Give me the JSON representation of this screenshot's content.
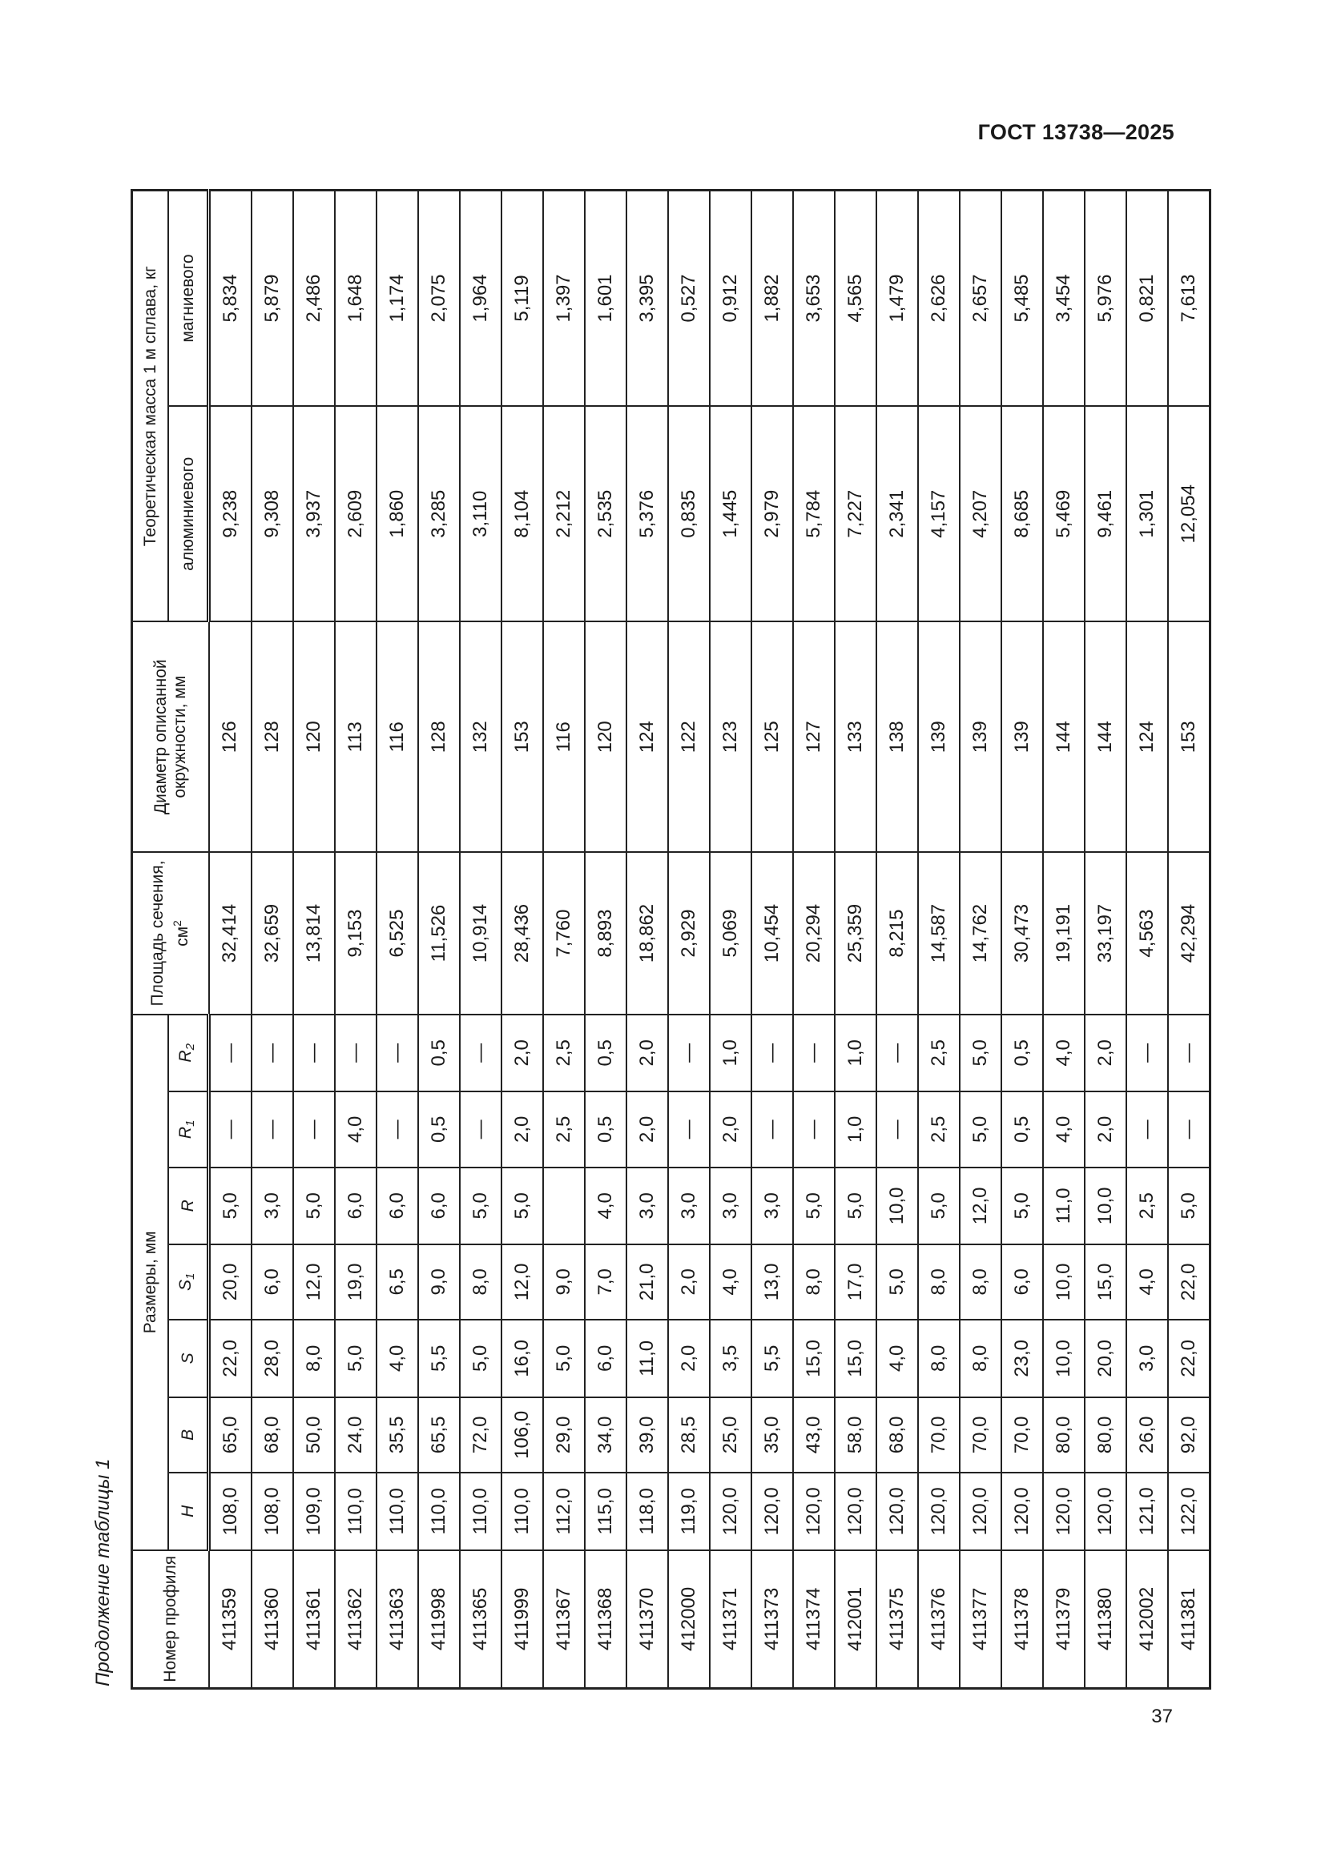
{
  "header": {
    "doc_code": "ГОСТ 13738—2025"
  },
  "caption": "Продолжение таблицы 1",
  "page_number": "37",
  "table": {
    "headers": {
      "profile_no": "Номер профиля",
      "dimensions": "Размеры, мм",
      "H": "H",
      "B": "B",
      "S": "S",
      "S1": {
        "base": "S",
        "sub": "1"
      },
      "R": "R",
      "R1": {
        "base": "R",
        "sub": "1"
      },
      "R2": {
        "base": "R",
        "sub": "2"
      },
      "area": {
        "text": "Площадь сечения, см",
        "sup": "2"
      },
      "diameter": "Диаметр описанной окружности, мм",
      "mass": "Теоретическая масса 1 м сплава, кг",
      "mass_al": "алюминиевого",
      "mass_mg": "магниевого"
    },
    "rows": [
      [
        "411359",
        "108,0",
        "65,0",
        "22,0",
        "20,0",
        "5,0",
        "—",
        "—",
        "32,414",
        "126",
        "9,238",
        "5,834"
      ],
      [
        "411360",
        "108,0",
        "68,0",
        "28,0",
        "6,0",
        "3,0",
        "—",
        "—",
        "32,659",
        "128",
        "9,308",
        "5,879"
      ],
      [
        "411361",
        "109,0",
        "50,0",
        "8,0",
        "12,0",
        "5,0",
        "—",
        "—",
        "13,814",
        "120",
        "3,937",
        "2,486"
      ],
      [
        "411362",
        "110,0",
        "24,0",
        "5,0",
        "19,0",
        "6,0",
        "4,0",
        "—",
        "9,153",
        "113",
        "2,609",
        "1,648"
      ],
      [
        "411363",
        "110,0",
        "35,5",
        "4,0",
        "6,5",
        "6,0",
        "—",
        "—",
        "6,525",
        "116",
        "1,860",
        "1,174"
      ],
      [
        "411998",
        "110,0",
        "65,5",
        "5,5",
        "9,0",
        "6,0",
        "0,5",
        "0,5",
        "11,526",
        "128",
        "3,285",
        "2,075"
      ],
      [
        "411365",
        "110,0",
        "72,0",
        "5,0",
        "8,0",
        "5,0",
        "—",
        "—",
        "10,914",
        "132",
        "3,110",
        "1,964"
      ],
      [
        "411999",
        "110,0",
        "106,0",
        "16,0",
        "12,0",
        "5,0",
        "2,0",
        "2,0",
        "28,436",
        "153",
        "8,104",
        "5,119"
      ],
      [
        "411367",
        "112,0",
        "29,0",
        "5,0",
        "9,0",
        "",
        "2,5",
        "2,5",
        "7,760",
        "116",
        "2,212",
        "1,397"
      ],
      [
        "411368",
        "115,0",
        "34,0",
        "6,0",
        "7,0",
        "4,0",
        "0,5",
        "0,5",
        "8,893",
        "120",
        "2,535",
        "1,601"
      ],
      [
        "411370",
        "118,0",
        "39,0",
        "11,0",
        "21,0",
        "3,0",
        "2,0",
        "2,0",
        "18,862",
        "124",
        "5,376",
        "3,395"
      ],
      [
        "412000",
        "119,0",
        "28,5",
        "2,0",
        "2,0",
        "3,0",
        "—",
        "—",
        "2,929",
        "122",
        "0,835",
        "0,527"
      ],
      [
        "411371",
        "120,0",
        "25,0",
        "3,5",
        "4,0",
        "3,0",
        "2,0",
        "1,0",
        "5,069",
        "123",
        "1,445",
        "0,912"
      ],
      [
        "411373",
        "120,0",
        "35,0",
        "5,5",
        "13,0",
        "3,0",
        "—",
        "—",
        "10,454",
        "125",
        "2,979",
        "1,882"
      ],
      [
        "411374",
        "120,0",
        "43,0",
        "15,0",
        "8,0",
        "5,0",
        "—",
        "—",
        "20,294",
        "127",
        "5,784",
        "3,653"
      ],
      [
        "412001",
        "120,0",
        "58,0",
        "15,0",
        "17,0",
        "5,0",
        "1,0",
        "1,0",
        "25,359",
        "133",
        "7,227",
        "4,565"
      ],
      [
        "411375",
        "120,0",
        "68,0",
        "4,0",
        "5,0",
        "10,0",
        "—",
        "—",
        "8,215",
        "138",
        "2,341",
        "1,479"
      ],
      [
        "411376",
        "120,0",
        "70,0",
        "8,0",
        "8,0",
        "5,0",
        "2,5",
        "2,5",
        "14,587",
        "139",
        "4,157",
        "2,626"
      ],
      [
        "411377",
        "120,0",
        "70,0",
        "8,0",
        "8,0",
        "12,0",
        "5,0",
        "5,0",
        "14,762",
        "139",
        "4,207",
        "2,657"
      ],
      [
        "411378",
        "120,0",
        "70,0",
        "23,0",
        "6,0",
        "5,0",
        "0,5",
        "0,5",
        "30,473",
        "139",
        "8,685",
        "5,485"
      ],
      [
        "411379",
        "120,0",
        "80,0",
        "10,0",
        "10,0",
        "11,0",
        "4,0",
        "4,0",
        "19,191",
        "144",
        "5,469",
        "3,454"
      ],
      [
        "411380",
        "120,0",
        "80,0",
        "20,0",
        "15,0",
        "10,0",
        "2,0",
        "2,0",
        "33,197",
        "144",
        "9,461",
        "5,976"
      ],
      [
        "412002",
        "121,0",
        "26,0",
        "3,0",
        "4,0",
        "2,5",
        "—",
        "—",
        "4,563",
        "124",
        "1,301",
        "0,821"
      ],
      [
        "411381",
        "122,0",
        "92,0",
        "22,0",
        "22,0",
        "5,0",
        "—",
        "—",
        "42,294",
        "153",
        "12,054",
        "7,613"
      ]
    ]
  }
}
